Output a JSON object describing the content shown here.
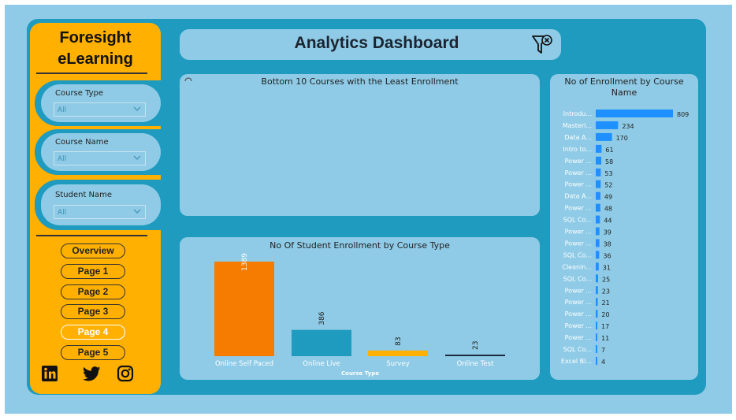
{
  "brand": {
    "line1": "Foresight",
    "line2": "eLearning"
  },
  "filters": [
    {
      "label": "Course Type",
      "value": "All"
    },
    {
      "label": "Course Name",
      "value": "All"
    },
    {
      "label": "Student Name",
      "value": "All"
    }
  ],
  "nav": [
    "Overview",
    "Page 1",
    "Page 2",
    "Page 3",
    "Page 4",
    "Page 5"
  ],
  "active_nav": "Page 4",
  "social_icons": [
    "linkedin-icon",
    "twitter-icon",
    "instagram-icon"
  ],
  "header": {
    "title": "Analytics Dashboard",
    "icon": "filter-clear-icon"
  },
  "bottom10": {
    "title": "Bottom 10 Courses with the Least Enrollment"
  },
  "colors": {
    "orange": "#f57c00",
    "teal": "#1f9bbf",
    "yellow": "#ffb000",
    "navy": "#1b2a3a",
    "blue": "#1e90ff",
    "sidebar": "#ffb000",
    "panel": "#1f9bbf",
    "card": "#8fcbe6"
  },
  "chart_data": [
    {
      "type": "bar",
      "title": "No Of Student Enrollment by Course Type",
      "xlabel": "Course Type",
      "ylabel": "",
      "categories": [
        "Online Self Paced",
        "Online Live",
        "Survey",
        "Online Test"
      ],
      "values": [
        1389,
        386,
        83,
        23
      ],
      "bar_colors": [
        "#f57c00",
        "#1f9bbf",
        "#ffb000",
        "#1b2a3a"
      ],
      "ylim": [
        0,
        1389
      ],
      "data_labels": true
    },
    {
      "type": "bar",
      "orientation": "horizontal",
      "title": "No of Enrollment by Course Name",
      "categories": [
        "Introdu...",
        "Masteri...",
        "Data A...",
        "Intro to...",
        "Power ...",
        "Power ...",
        "Power ...",
        "Data A...",
        "Power ...",
        "SQL Co...",
        "Power ...",
        "Power ...",
        "SQL Co...",
        "Cleanin...",
        "SQL Co...",
        "Power ...",
        "Power ...",
        "Power ...",
        "Power ...",
        "Power ...",
        "SQL Co...",
        "Excel Bl..."
      ],
      "values": [
        809,
        234,
        170,
        61,
        58,
        53,
        52,
        49,
        48,
        44,
        39,
        38,
        36,
        31,
        25,
        23,
        21,
        20,
        17,
        11,
        7,
        4
      ],
      "color": "#1e90ff",
      "xlim": [
        0,
        809
      ],
      "data_labels": true
    }
  ]
}
